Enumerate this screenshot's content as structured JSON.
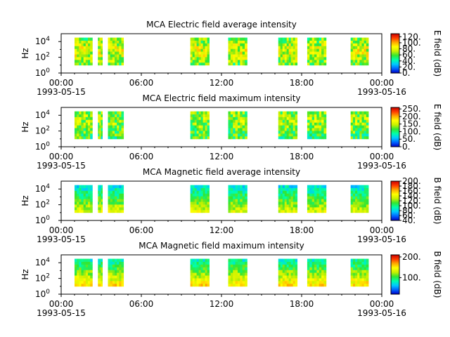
{
  "chart_data": [
    {
      "type": "heatmap",
      "title": "MCA  Electric field average intensity",
      "ylabel": "Hz",
      "y_scale": "log",
      "y_ticks": [
        {
          "exp": "0",
          "value": 1
        },
        {
          "exp": "2",
          "value": 100
        },
        {
          "exp": "4",
          "value": 10000
        }
      ],
      "y_range": [
        1,
        100000
      ],
      "x_range": [
        "1993-05-15 00:00",
        "1993-05-16 00:00"
      ],
      "x_ticks": [
        "00:00",
        "06:00",
        "12:00",
        "18:00",
        "00:00"
      ],
      "x_tick_dates": [
        "1993-05-15",
        "",
        "",
        "",
        "1993-05-16"
      ],
      "colorbar_label": "E field (dB)",
      "colorbar_ticks": [
        "0.",
        "20.",
        "40.",
        "60.",
        "80.",
        "100.",
        "120."
      ],
      "colorbar_range": [
        0,
        130
      ],
      "data_extent_hz": [
        10,
        31600
      ],
      "data_intervals": [
        [
          "01:00",
          "02:20"
        ],
        [
          "02:45",
          "03:05"
        ],
        [
          "03:30",
          "04:40"
        ],
        [
          "09:40",
          "11:05"
        ],
        [
          "12:30",
          "13:55"
        ],
        [
          "16:15",
          "17:40"
        ],
        [
          "18:25",
          "19:50"
        ],
        [
          "21:40",
          "23:00"
        ]
      ],
      "grid": false
    },
    {
      "type": "heatmap",
      "title": "MCA  Electric field maximum intensity",
      "ylabel": "Hz",
      "y_scale": "log",
      "y_ticks": [
        {
          "exp": "0",
          "value": 1
        },
        {
          "exp": "2",
          "value": 100
        },
        {
          "exp": "4",
          "value": 10000
        }
      ],
      "y_range": [
        1,
        100000
      ],
      "x_range": [
        "1993-05-15 00:00",
        "1993-05-16 00:00"
      ],
      "x_ticks": [
        "00:00",
        "06:00",
        "12:00",
        "18:00",
        "00:00"
      ],
      "x_tick_dates": [
        "1993-05-15",
        "",
        "",
        "",
        "1993-05-16"
      ],
      "colorbar_label": "E field (dB)",
      "colorbar_ticks": [
        "0.",
        "50.",
        "100.",
        "150.",
        "200.",
        "250."
      ],
      "colorbar_range": [
        0,
        260
      ],
      "data_extent_hz": [
        10,
        31600
      ],
      "data_intervals": [
        [
          "01:00",
          "02:20"
        ],
        [
          "02:45",
          "03:05"
        ],
        [
          "03:30",
          "04:40"
        ],
        [
          "09:40",
          "11:05"
        ],
        [
          "12:30",
          "13:55"
        ],
        [
          "16:15",
          "17:40"
        ],
        [
          "18:25",
          "19:50"
        ],
        [
          "21:40",
          "23:00"
        ]
      ],
      "grid": false
    },
    {
      "type": "heatmap",
      "title": "MCA  Magnetic field average intensity",
      "ylabel": "Hz",
      "y_scale": "log",
      "y_ticks": [
        {
          "exp": "0",
          "value": 1
        },
        {
          "exp": "2",
          "value": 100
        },
        {
          "exp": "4",
          "value": 10000
        }
      ],
      "y_range": [
        1,
        100000
      ],
      "x_range": [
        "1993-05-15 00:00",
        "1993-05-16 00:00"
      ],
      "x_ticks": [
        "00:00",
        "06:00",
        "12:00",
        "18:00",
        "00:00"
      ],
      "x_tick_dates": [
        "1993-05-15",
        "",
        "",
        "",
        "1993-05-16"
      ],
      "colorbar_label": "B field (dB)",
      "colorbar_ticks": [
        "40.",
        "60.",
        "80.",
        "100.",
        "120.",
        "140.",
        "160.",
        "180.",
        "200."
      ],
      "colorbar_range": [
        40,
        200
      ],
      "data_extent_hz": [
        10,
        31600
      ],
      "data_intervals": [
        [
          "01:00",
          "02:20"
        ],
        [
          "02:45",
          "03:05"
        ],
        [
          "03:30",
          "04:40"
        ],
        [
          "09:40",
          "11:05"
        ],
        [
          "12:30",
          "13:55"
        ],
        [
          "16:15",
          "17:40"
        ],
        [
          "18:25",
          "19:50"
        ],
        [
          "21:40",
          "23:00"
        ]
      ],
      "grid": false
    },
    {
      "type": "heatmap",
      "title": "MCA  Magnetic field maximum intensity",
      "ylabel": "Hz",
      "y_scale": "log",
      "y_ticks": [
        {
          "exp": "0",
          "value": 1
        },
        {
          "exp": "2",
          "value": 100
        },
        {
          "exp": "4",
          "value": 10000
        }
      ],
      "y_range": [
        1,
        100000
      ],
      "x_range": [
        "1993-05-15 00:00",
        "1993-05-16 00:00"
      ],
      "x_ticks": [
        "00:00",
        "06:00",
        "12:00",
        "18:00",
        "00:00"
      ],
      "x_tick_dates": [
        "1993-05-15",
        "",
        "",
        "",
        "1993-05-16"
      ],
      "colorbar_label": "B field (dB)",
      "colorbar_ticks": [
        "100.",
        "200."
      ],
      "colorbar_range": [
        20,
        210
      ],
      "data_extent_hz": [
        10,
        31600
      ],
      "data_intervals": [
        [
          "01:00",
          "02:20"
        ],
        [
          "02:45",
          "03:05"
        ],
        [
          "03:30",
          "04:40"
        ],
        [
          "09:40",
          "11:05"
        ],
        [
          "12:30",
          "13:55"
        ],
        [
          "16:15",
          "17:40"
        ],
        [
          "18:25",
          "19:50"
        ],
        [
          "21:40",
          "23:00"
        ]
      ],
      "grid": false
    }
  ],
  "colormap": [
    "#0000c8",
    "#0064ff",
    "#00c8ff",
    "#00ffaa",
    "#32e632",
    "#c8f000",
    "#ffff00",
    "#ffaa00",
    "#ff3c00",
    "#c80000"
  ]
}
